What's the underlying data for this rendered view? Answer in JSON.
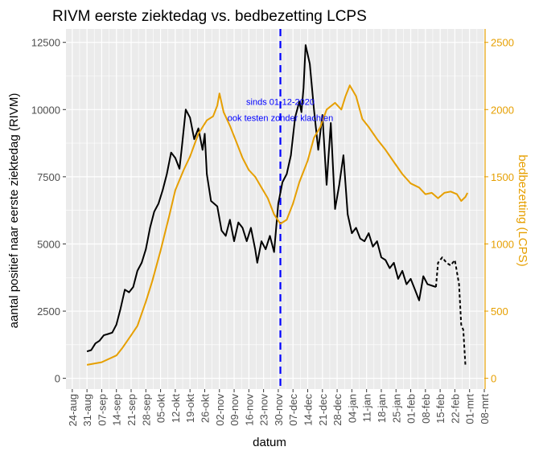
{
  "chart_data": {
    "type": "line",
    "title": "RIVM eerste ziektedag vs. bedbezetting LCPS",
    "xlabel": "datum",
    "ylabel_left": "aantal positief naar eerste ziektedag (RIVM)",
    "ylabel_right": "bedbezetting (LCPS)",
    "x_range": [
      "2020-08-21",
      "2021-03-08"
    ],
    "x_ticks": [
      {
        "date": "2020-08-24",
        "label": "24-aug"
      },
      {
        "date": "2020-08-31",
        "label": "31-aug"
      },
      {
        "date": "2020-09-07",
        "label": "07-sep"
      },
      {
        "date": "2020-09-14",
        "label": "14-sep"
      },
      {
        "date": "2020-09-21",
        "label": "21-sep"
      },
      {
        "date": "2020-09-28",
        "label": "28-sep"
      },
      {
        "date": "2020-10-05",
        "label": "05-okt"
      },
      {
        "date": "2020-10-12",
        "label": "12-okt"
      },
      {
        "date": "2020-10-19",
        "label": "19-okt"
      },
      {
        "date": "2020-10-26",
        "label": "26-okt"
      },
      {
        "date": "2020-11-02",
        "label": "02-nov"
      },
      {
        "date": "2020-11-09",
        "label": "09-nov"
      },
      {
        "date": "2020-11-16",
        "label": "16-nov"
      },
      {
        "date": "2020-11-23",
        "label": "23-nov"
      },
      {
        "date": "2020-11-30",
        "label": "30-nov"
      },
      {
        "date": "2020-12-07",
        "label": "07-dec"
      },
      {
        "date": "2020-12-14",
        "label": "14-dec"
      },
      {
        "date": "2020-12-21",
        "label": "21-dec"
      },
      {
        "date": "2020-12-28",
        "label": "28-dec"
      },
      {
        "date": "2021-01-04",
        "label": "04-jan"
      },
      {
        "date": "2021-01-11",
        "label": "11-jan"
      },
      {
        "date": "2021-01-18",
        "label": "18-jan"
      },
      {
        "date": "2021-01-25",
        "label": "25-jan"
      },
      {
        "date": "2021-02-01",
        "label": "01-feb"
      },
      {
        "date": "2021-02-08",
        "label": "08-feb"
      },
      {
        "date": "2021-02-15",
        "label": "15-feb"
      },
      {
        "date": "2021-02-22",
        "label": "22-feb"
      },
      {
        "date": "2021-03-01",
        "label": "01-mrt"
      },
      {
        "date": "2021-03-08",
        "label": "08-mrt"
      }
    ],
    "y_left": {
      "range": [
        -400,
        13000
      ],
      "ticks": [
        0,
        2500,
        5000,
        7500,
        10000,
        12500
      ],
      "tick_labels": [
        "0",
        "2500",
        "5000",
        "7500",
        "10000",
        "12500"
      ]
    },
    "y_right": {
      "range": [
        -80,
        2600
      ],
      "ticks": [
        0,
        500,
        1000,
        1500,
        2000,
        2500
      ],
      "tick_labels": [
        "0",
        "500",
        "1000",
        "1500",
        "2000",
        "2500"
      ]
    },
    "grid": true,
    "colors": {
      "rivm": "#000000",
      "lcps": "#E69F00",
      "annotation": "#0000FF",
      "panel": "#EBEBEB",
      "grid": "#FFFFFF",
      "tick_text": "#4D4D4D"
    },
    "vline": {
      "date": "2020-12-01",
      "color": "#0000FF",
      "style": "dashed"
    },
    "annotation": {
      "date": "2020-12-01",
      "y_left": 10000,
      "lines": [
        "sinds 01-12-2020",
        "ook testen zonder klachten"
      ]
    },
    "series": [
      {
        "axis": "left",
        "color": "#000000",
        "style": "solid",
        "points": [
          [
            "2020-08-31",
            1000
          ],
          [
            "2020-09-02",
            1050
          ],
          [
            "2020-09-04",
            1300
          ],
          [
            "2020-09-06",
            1400
          ],
          [
            "2020-09-08",
            1600
          ],
          [
            "2020-09-10",
            1650
          ],
          [
            "2020-09-12",
            1700
          ],
          [
            "2020-09-14",
            2000
          ],
          [
            "2020-09-16",
            2600
          ],
          [
            "2020-09-18",
            3300
          ],
          [
            "2020-09-20",
            3200
          ],
          [
            "2020-09-22",
            3400
          ],
          [
            "2020-09-24",
            4000
          ],
          [
            "2020-09-26",
            4300
          ],
          [
            "2020-09-28",
            4800
          ],
          [
            "2020-09-30",
            5600
          ],
          [
            "2020-10-02",
            6200
          ],
          [
            "2020-10-04",
            6500
          ],
          [
            "2020-10-06",
            7000
          ],
          [
            "2020-10-08",
            7600
          ],
          [
            "2020-10-10",
            8400
          ],
          [
            "2020-10-12",
            8200
          ],
          [
            "2020-10-14",
            7800
          ],
          [
            "2020-10-15",
            8500
          ],
          [
            "2020-10-17",
            10000
          ],
          [
            "2020-10-19",
            9700
          ],
          [
            "2020-10-21",
            8900
          ],
          [
            "2020-10-23",
            9300
          ],
          [
            "2020-10-25",
            8500
          ],
          [
            "2020-10-26",
            9100
          ],
          [
            "2020-10-27",
            7600
          ],
          [
            "2020-10-29",
            6600
          ],
          [
            "2020-11-01",
            6400
          ],
          [
            "2020-11-03",
            5500
          ],
          [
            "2020-11-05",
            5300
          ],
          [
            "2020-11-07",
            5900
          ],
          [
            "2020-11-09",
            5100
          ],
          [
            "2020-11-11",
            5800
          ],
          [
            "2020-11-13",
            5600
          ],
          [
            "2020-11-15",
            5100
          ],
          [
            "2020-11-17",
            5600
          ],
          [
            "2020-11-19",
            4800
          ],
          [
            "2020-11-20",
            4300
          ],
          [
            "2020-11-22",
            5100
          ],
          [
            "2020-11-24",
            4800
          ],
          [
            "2020-11-26",
            5300
          ],
          [
            "2020-11-28",
            4700
          ],
          [
            "2020-11-30",
            6500
          ],
          [
            "2020-12-02",
            7300
          ],
          [
            "2020-12-04",
            7600
          ],
          [
            "2020-12-06",
            8300
          ],
          [
            "2020-12-08",
            9700
          ],
          [
            "2020-12-10",
            10300
          ],
          [
            "2020-12-11",
            9900
          ],
          [
            "2020-12-12",
            10800
          ],
          [
            "2020-12-13",
            12400
          ],
          [
            "2020-12-15",
            11700
          ],
          [
            "2020-12-17",
            10000
          ],
          [
            "2020-12-19",
            8500
          ],
          [
            "2020-12-21",
            9800
          ],
          [
            "2020-12-23",
            7200
          ],
          [
            "2020-12-25",
            9500
          ],
          [
            "2020-12-27",
            6300
          ],
          [
            "2020-12-29",
            7200
          ],
          [
            "2020-12-31",
            8300
          ],
          [
            "2021-01-02",
            6100
          ],
          [
            "2021-01-04",
            5400
          ],
          [
            "2021-01-06",
            5600
          ],
          [
            "2021-01-08",
            5200
          ],
          [
            "2021-01-10",
            5100
          ],
          [
            "2021-01-12",
            5400
          ],
          [
            "2021-01-14",
            4900
          ],
          [
            "2021-01-16",
            5100
          ],
          [
            "2021-01-18",
            4500
          ],
          [
            "2021-01-20",
            4400
          ],
          [
            "2021-01-22",
            4100
          ],
          [
            "2021-01-24",
            4300
          ],
          [
            "2021-01-26",
            3700
          ],
          [
            "2021-01-28",
            4000
          ],
          [
            "2021-01-30",
            3500
          ],
          [
            "2021-02-01",
            3700
          ],
          [
            "2021-02-03",
            3300
          ],
          [
            "2021-02-05",
            2900
          ],
          [
            "2021-02-07",
            3800
          ],
          [
            "2021-02-09",
            3500
          ],
          [
            "2021-02-13",
            3400
          ]
        ]
      },
      {
        "axis": "left",
        "color": "#000000",
        "style": "dashed",
        "points": [
          [
            "2021-02-13",
            3400
          ],
          [
            "2021-02-14",
            4300
          ],
          [
            "2021-02-16",
            4500
          ],
          [
            "2021-02-18",
            4300
          ],
          [
            "2021-02-20",
            4200
          ],
          [
            "2021-02-22",
            4400
          ],
          [
            "2021-02-24",
            3500
          ],
          [
            "2021-02-25",
            2000
          ],
          [
            "2021-02-26",
            1800
          ],
          [
            "2021-02-27",
            500
          ]
        ]
      },
      {
        "axis": "right",
        "color": "#E69F00",
        "style": "solid",
        "points": [
          [
            "2020-08-31",
            100
          ],
          [
            "2020-09-07",
            120
          ],
          [
            "2020-09-14",
            170
          ],
          [
            "2020-09-17",
            230
          ],
          [
            "2020-09-21",
            320
          ],
          [
            "2020-09-24",
            390
          ],
          [
            "2020-09-28",
            570
          ],
          [
            "2020-10-01",
            720
          ],
          [
            "2020-10-05",
            950
          ],
          [
            "2020-10-09",
            1200
          ],
          [
            "2020-10-12",
            1400
          ],
          [
            "2020-10-16",
            1550
          ],
          [
            "2020-10-19",
            1650
          ],
          [
            "2020-10-23",
            1820
          ],
          [
            "2020-10-27",
            1920
          ],
          [
            "2020-10-30",
            1950
          ],
          [
            "2020-11-01",
            2030
          ],
          [
            "2020-11-02",
            2120
          ],
          [
            "2020-11-04",
            1980
          ],
          [
            "2020-11-07",
            1880
          ],
          [
            "2020-11-10",
            1760
          ],
          [
            "2020-11-13",
            1640
          ],
          [
            "2020-11-16",
            1550
          ],
          [
            "2020-11-19",
            1500
          ],
          [
            "2020-11-22",
            1420
          ],
          [
            "2020-11-25",
            1340
          ],
          [
            "2020-11-28",
            1220
          ],
          [
            "2020-12-01",
            1150
          ],
          [
            "2020-12-04",
            1180
          ],
          [
            "2020-12-07",
            1300
          ],
          [
            "2020-12-10",
            1460
          ],
          [
            "2020-12-14",
            1620
          ],
          [
            "2020-12-17",
            1790
          ],
          [
            "2020-12-20",
            1870
          ],
          [
            "2020-12-23",
            2000
          ],
          [
            "2020-12-27",
            2050
          ],
          [
            "2020-12-30",
            2000
          ],
          [
            "2021-01-01",
            2100
          ],
          [
            "2021-01-03",
            2180
          ],
          [
            "2021-01-06",
            2100
          ],
          [
            "2021-01-09",
            1930
          ],
          [
            "2021-01-12",
            1870
          ],
          [
            "2021-01-16",
            1780
          ],
          [
            "2021-01-20",
            1700
          ],
          [
            "2021-01-24",
            1610
          ],
          [
            "2021-01-28",
            1520
          ],
          [
            "2021-02-01",
            1450
          ],
          [
            "2021-02-05",
            1420
          ],
          [
            "2021-02-08",
            1370
          ],
          [
            "2021-02-11",
            1380
          ],
          [
            "2021-02-14",
            1340
          ],
          [
            "2021-02-17",
            1380
          ],
          [
            "2021-02-20",
            1390
          ],
          [
            "2021-02-23",
            1370
          ],
          [
            "2021-02-25",
            1320
          ],
          [
            "2021-02-27",
            1350
          ],
          [
            "2021-02-28",
            1380
          ]
        ]
      }
    ]
  }
}
